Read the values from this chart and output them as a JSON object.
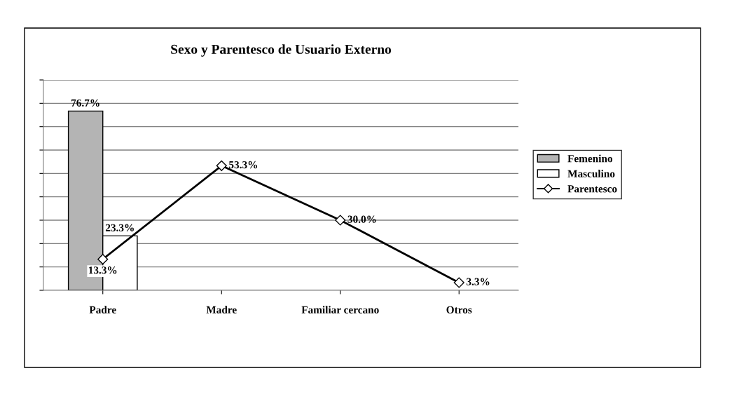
{
  "chart_data": {
    "type": "bar",
    "title": "Sexo y Parentesco de Usuario Externo",
    "categories": [
      "Padre",
      "Madre",
      "Familiar cercano",
      "Otros"
    ],
    "series": [
      {
        "name": "Femenino",
        "color": "#b4b4b4",
        "values": [
          76.7,
          null,
          null,
          null
        ],
        "value_labels": [
          "76.7%",
          null,
          null,
          null
        ]
      },
      {
        "name": "Masculino",
        "color": "#ffffff",
        "values": [
          23.3,
          null,
          null,
          null
        ],
        "value_labels": [
          "23.3%",
          null,
          null,
          null
        ]
      },
      {
        "name": "Parentesco",
        "type": "line",
        "color": "#000000",
        "marker": "diamond",
        "line_style": "solid",
        "values": [
          13.3,
          53.3,
          30.0,
          3.3
        ],
        "value_labels": [
          "13.3%",
          "53.3%",
          "30.0%",
          "3.3%"
        ]
      }
    ],
    "ylim": [
      0,
      90
    ],
    "yticks": [
      {
        "value": 0,
        "label": null
      },
      {
        "value": 10,
        "label": null
      },
      {
        "value": 20,
        "label": null
      },
      {
        "value": 30,
        "label": null
      },
      {
        "value": 40,
        "label": null
      },
      {
        "value": 50,
        "label": null
      },
      {
        "value": 60,
        "label": null
      },
      {
        "value": 70,
        "label": null
      },
      {
        "value": 80,
        "label": null
      },
      {
        "value": 90,
        "label": null
      }
    ],
    "grid": "y",
    "legend": "right",
    "tick_labels": "x"
  }
}
